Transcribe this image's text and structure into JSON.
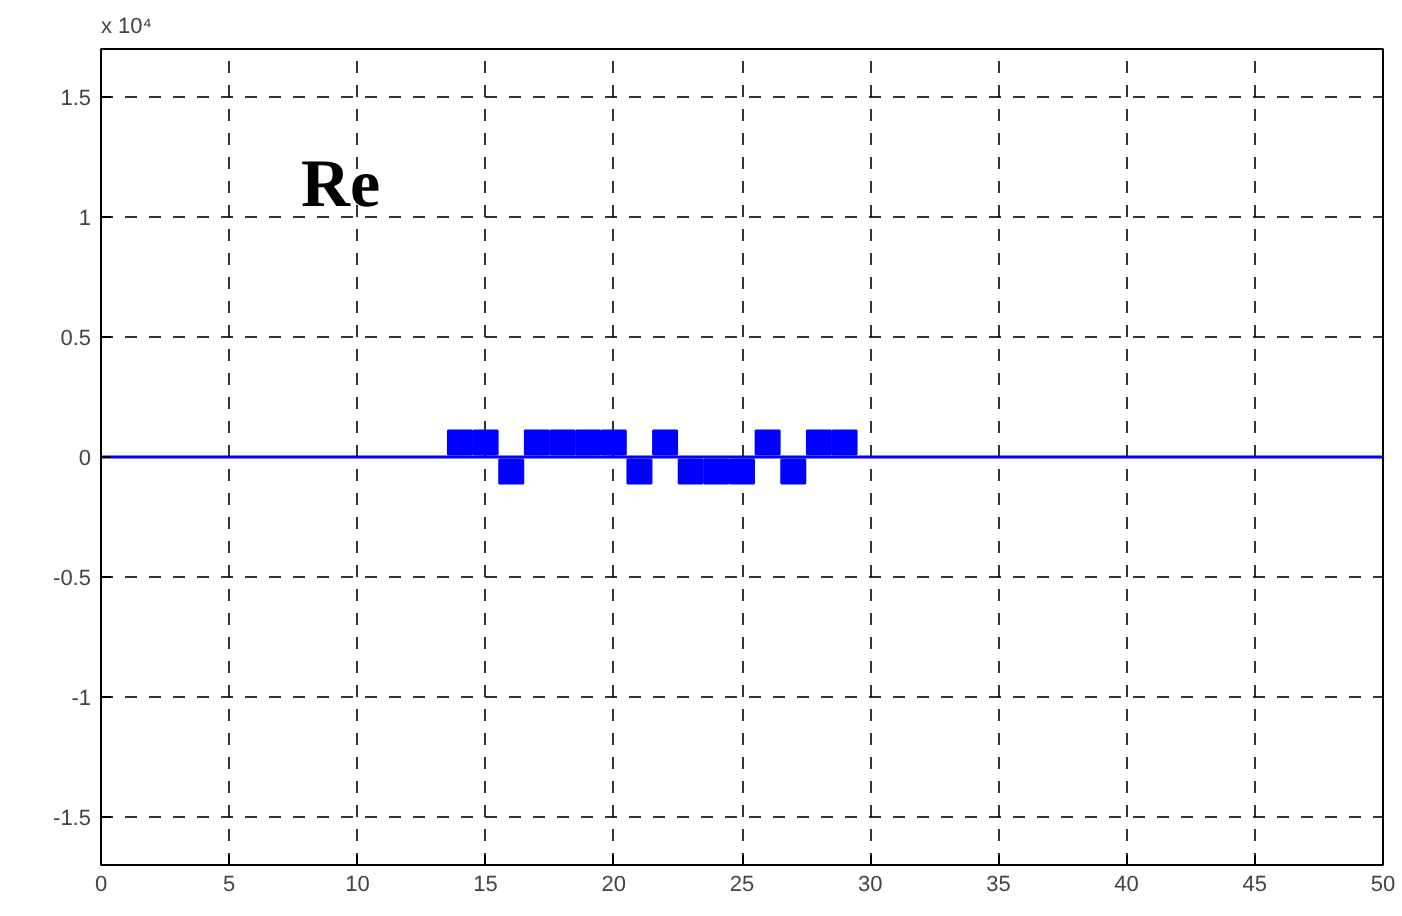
{
  "chart_data": {
    "type": "scatter",
    "xlim": [
      0,
      50
    ],
    "ylim": [
      -1.7,
      1.7
    ],
    "xticks": [
      0,
      5,
      10,
      15,
      20,
      25,
      30,
      35,
      40,
      45,
      50
    ],
    "yticks": [
      -1.5,
      -1,
      -0.5,
      0,
      0.5,
      1,
      1.5
    ],
    "grid": true,
    "marker": "square",
    "series": [
      {
        "type": "line",
        "color": "#0000ff",
        "line_style": "solid",
        "marker": "none",
        "x": [
          0,
          50
        ],
        "values": [
          0,
          0
        ]
      },
      {
        "color": "#0000ff",
        "x": [
          14,
          15,
          16,
          17,
          18,
          19,
          20,
          21,
          22,
          23,
          24,
          25,
          26,
          27,
          28,
          29
        ],
        "values": [
          0.06,
          0.06,
          -0.06,
          0.06,
          0.06,
          0.06,
          0.06,
          -0.06,
          0.06,
          -0.06,
          -0.06,
          -0.06,
          0.06,
          -0.06,
          0.06,
          0.06
        ]
      }
    ],
    "annotations": [
      "x 10⁴",
      "Re"
    ]
  }
}
